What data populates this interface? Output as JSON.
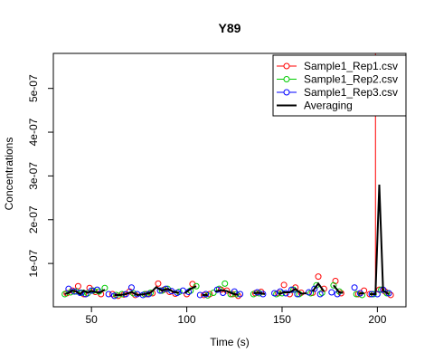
{
  "chart_data": {
    "type": "scatter",
    "title": "Y89",
    "xlabel": "Time (s)",
    "ylabel": "Concentrations",
    "xlim": [
      30,
      215
    ],
    "ylim": [
      1e-09,
      5.8e-07
    ],
    "x_ticks": [
      50,
      100,
      150,
      200
    ],
    "x_tick_labels": [
      "50",
      "100",
      "150",
      "200"
    ],
    "y_ticks": [
      1e-07,
      2e-07,
      3e-07,
      4e-07,
      5e-07
    ],
    "y_tick_labels": [
      "1e-07",
      "2e-07",
      "3e-07",
      "4e-07",
      "5e-07"
    ],
    "legend_position": "top-right",
    "colors": {
      "rep1": "#ff0000",
      "rep2": "#00cc00",
      "rep3": "#0000ff",
      "avg": "#000000"
    },
    "series": [
      {
        "name": "Sample1_Rep1.csv",
        "style": "points-and-line-segment",
        "color": "#ff0000",
        "x": [
          37,
          40,
          43,
          46,
          49,
          52,
          55,
          61,
          64,
          67,
          70,
          73,
          79,
          82,
          85,
          88,
          91,
          94,
          100,
          103,
          109,
          112,
          118,
          121,
          124,
          127,
          136,
          139,
          148,
          151,
          154,
          157,
          160,
          166,
          169,
          172,
          178,
          181,
          190,
          193,
          196,
          199,
          201,
          204,
          207
        ],
        "y": [
          3.2e-08,
          3.8e-08,
          4.8e-08,
          3e-08,
          4.4e-08,
          3.5e-08,
          3e-08,
          3e-08,
          2.6e-08,
          2.9e-08,
          3.6e-08,
          2.8e-08,
          3e-08,
          3.2e-08,
          5.4e-08,
          4e-08,
          3.5e-08,
          3.1e-08,
          3e-08,
          5.3e-08,
          2.8e-08,
          3e-08,
          4e-08,
          3.8e-08,
          3e-08,
          2.6e-08,
          3.2e-08,
          3.5e-08,
          3.2e-08,
          5.1e-08,
          3e-08,
          4.5e-08,
          3.3e-08,
          3.3e-08,
          7e-08,
          4.2e-08,
          6e-08,
          3.2e-08,
          3e-08,
          3.8e-08,
          3e-08,
          5.4e-07,
          4e-08,
          3.6e-08,
          2.8e-08
        ]
      },
      {
        "name": "Sample1_Rep2.csv",
        "style": "points",
        "color": "#00cc00",
        "x": [
          36,
          39,
          42,
          45,
          48,
          51,
          54,
          57,
          63,
          66,
          72,
          78,
          81,
          87,
          90,
          96,
          102,
          105,
          111,
          114,
          117,
          120,
          123,
          126,
          135,
          138,
          147,
          150,
          156,
          159,
          165,
          168,
          171,
          177,
          180,
          189,
          192,
          198,
          202,
          205
        ],
        "y": [
          3e-08,
          3.4e-08,
          3.6e-08,
          3.3e-08,
          3.2e-08,
          3.8e-08,
          3.6e-08,
          4.4e-08,
          2.8e-08,
          3e-08,
          3.2e-08,
          3e-08,
          3.3e-08,
          3.8e-08,
          4.2e-08,
          3.5e-08,
          3.8e-08,
          4.8e-08,
          2.7e-08,
          3.3e-08,
          4.2e-08,
          5.4e-08,
          3e-08,
          3e-08,
          3e-08,
          3.2e-08,
          3e-08,
          3.2e-08,
          4e-08,
          3e-08,
          3.2e-08,
          5e-08,
          3.3e-08,
          5e-08,
          3.6e-08,
          3e-08,
          2.8e-08,
          3e-08,
          4e-08,
          3.2e-08
        ]
      },
      {
        "name": "Sample1_Rep3.csv",
        "style": "points",
        "color": "#0000ff",
        "x": [
          38,
          41,
          44,
          47,
          50,
          53,
          59,
          62,
          68,
          71,
          74,
          77,
          80,
          86,
          89,
          92,
          95,
          98,
          101,
          107,
          110,
          116,
          119,
          125,
          128,
          137,
          140,
          146,
          149,
          152,
          155,
          158,
          164,
          167,
          170,
          176,
          179,
          188,
          191,
          197,
          200,
          203,
          206
        ],
        "y": [
          4.2e-08,
          3.6e-08,
          3.3e-08,
          3e-08,
          3.8e-08,
          4e-08,
          3e-08,
          2.6e-08,
          3e-08,
          4.5e-08,
          3e-08,
          2.8e-08,
          3e-08,
          3.8e-08,
          4.2e-08,
          3.7e-08,
          3.3e-08,
          3.8e-08,
          3.5e-08,
          2.8e-08,
          3e-08,
          4e-08,
          3.3e-08,
          3.6e-08,
          3e-08,
          3.4e-08,
          3e-08,
          3.2e-08,
          3.6e-08,
          3.2e-08,
          4e-08,
          3e-08,
          3.4e-08,
          4.2e-08,
          3e-08,
          3.4e-08,
          3e-08,
          4.5e-08,
          3.2e-08,
          3e-08,
          3e-08,
          4e-08,
          3.2e-08
        ]
      },
      {
        "name": "Averaging",
        "style": "line",
        "color": "#000000",
        "x": [
          36,
          38,
          40,
          42,
          44,
          46,
          48,
          50,
          52,
          54,
          57
        ],
        "y": [
          3e-08,
          3.3e-08,
          3.8e-08,
          3.6e-08,
          3e-08,
          3.8e-08,
          3.3e-08,
          3.7e-08,
          3.5e-08,
          3.3e-08,
          4e-08
        ]
      },
      {
        "name": "",
        "style": "line",
        "color": "#000000",
        "x": [
          62,
          65,
          68,
          71,
          74,
          78
        ],
        "y": [
          2.8e-08,
          2.8e-08,
          3e-08,
          3.5e-08,
          2.8e-08,
          3e-08
        ]
      },
      {
        "name": "",
        "style": "line",
        "color": "#000000",
        "x": [
          78,
          81,
          84,
          87,
          90,
          93,
          96
        ],
        "y": [
          3e-08,
          3.3e-08,
          4.6e-08,
          3.8e-08,
          4.2e-08,
          3.5e-08,
          3.3e-08
        ]
      },
      {
        "name": "",
        "style": "line",
        "color": "#000000",
        "x": [
          99,
          102,
          105
        ],
        "y": [
          3.2e-08,
          4.2e-08,
          4.8e-08
        ]
      },
      {
        "name": "",
        "style": "line",
        "color": "#000000",
        "x": [
          108,
          111
        ],
        "y": [
          2.8e-08,
          2.8e-08
        ]
      },
      {
        "name": "",
        "style": "line",
        "color": "#000000",
        "x": [
          115,
          118,
          121,
          124,
          127
        ],
        "y": [
          3.6e-08,
          3.9e-08,
          3.7e-08,
          3.1e-08,
          2.8e-08
        ]
      },
      {
        "name": "",
        "style": "line",
        "color": "#000000",
        "x": [
          135,
          138,
          141
        ],
        "y": [
          3.2e-08,
          3.3e-08,
          3e-08
        ]
      },
      {
        "name": "",
        "style": "line",
        "color": "#000000",
        "x": [
          148,
          151,
          154,
          157,
          160,
          163
        ],
        "y": [
          3e-08,
          3.4e-08,
          3.4e-08,
          4.2e-08,
          3.1e-08,
          3.2e-08
        ]
      },
      {
        "name": "",
        "style": "line",
        "color": "#000000",
        "x": [
          166,
          169,
          172
        ],
        "y": [
          3.6e-08,
          5.4e-08,
          3.6e-08
        ]
      },
      {
        "name": "",
        "style": "line",
        "color": "#000000",
        "x": [
          177,
          180,
          182
        ],
        "y": [
          5e-08,
          3.4e-08,
          3.3e-08
        ]
      },
      {
        "name": "",
        "style": "line",
        "color": "#000000",
        "x": [
          190,
          193
        ],
        "y": [
          3.1e-08,
          3.2e-08
        ]
      },
      {
        "name": "",
        "style": "line",
        "color": "#000000",
        "x": [
          196,
          199,
          201,
          203,
          206
        ],
        "y": [
          3e-08,
          3e-08,
          2.8e-07,
          3.8e-08,
          3e-08
        ]
      }
    ]
  }
}
